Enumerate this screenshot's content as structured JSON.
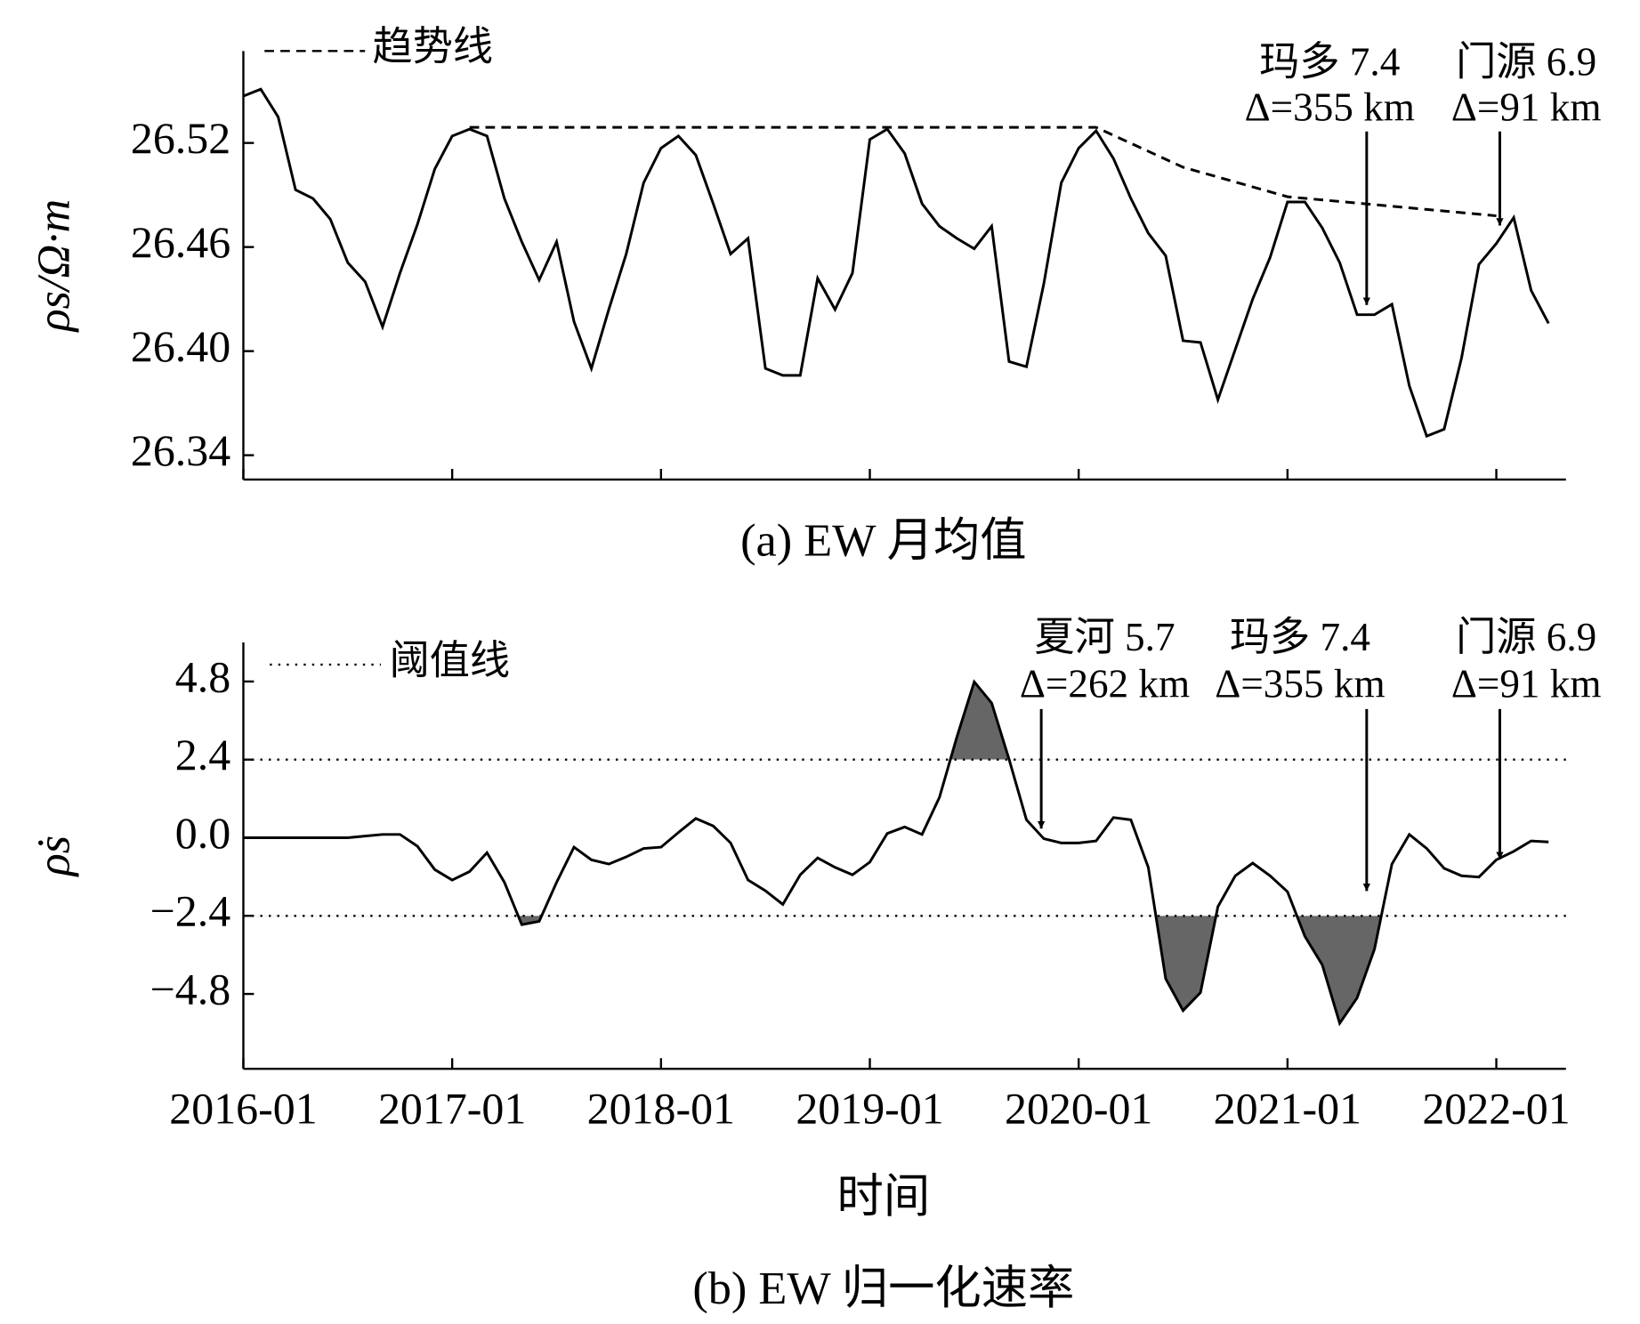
{
  "chart_data": [
    {
      "type": "line",
      "caption": "(a) EW 月均值",
      "ylabel": "ρs/Ω·m",
      "x": [
        "2016-01",
        "2016-02",
        "2016-03",
        "2016-04",
        "2016-05",
        "2016-06",
        "2016-07",
        "2016-08",
        "2016-09",
        "2016-10",
        "2016-11",
        "2016-12",
        "2017-01",
        "2017-02",
        "2017-03",
        "2017-04",
        "2017-05",
        "2017-06",
        "2017-07",
        "2017-08",
        "2017-09",
        "2017-10",
        "2017-11",
        "2017-12",
        "2018-01",
        "2018-02",
        "2018-03",
        "2018-04",
        "2018-05",
        "2018-06",
        "2018-07",
        "2018-08",
        "2018-09",
        "2018-10",
        "2018-11",
        "2018-12",
        "2019-01",
        "2019-02",
        "2019-03",
        "2019-04",
        "2019-05",
        "2019-06",
        "2019-07",
        "2019-08",
        "2019-09",
        "2019-10",
        "2019-11",
        "2019-12",
        "2020-01",
        "2020-02",
        "2020-03",
        "2020-04",
        "2020-05",
        "2020-06",
        "2020-07",
        "2020-08",
        "2020-09",
        "2020-10",
        "2020-11",
        "2020-12",
        "2021-01",
        "2021-02",
        "2021-03",
        "2021-04",
        "2021-05",
        "2021-06",
        "2021-07",
        "2021-08",
        "2021-09",
        "2021-10",
        "2021-11",
        "2021-12",
        "2022-01",
        "2022-02",
        "2022-03",
        "2022-04"
      ],
      "xlim": [
        "2016-01",
        "2022-05"
      ],
      "xticks": [
        "2016-01",
        "2017-01",
        "2018-01",
        "2019-01",
        "2020-01",
        "2021-01",
        "2022-01"
      ],
      "xtick_labels": false,
      "ylim": [
        26.326,
        26.573
      ],
      "yticks": [
        26.34,
        {
          "value": 26.4,
          "label": "26.40"
        },
        26.46,
        26.52
      ],
      "series": [
        {
          "color": "#000000",
          "dash": "solid",
          "values": [
            26.547,
            26.551,
            26.535,
            26.493,
            26.488,
            26.476,
            26.451,
            26.44,
            26.414,
            26.445,
            26.473,
            26.505,
            26.524,
            26.528,
            26.524,
            26.488,
            26.463,
            26.441,
            26.463,
            26.417,
            26.39,
            26.424,
            26.456,
            26.497,
            26.517,
            26.524,
            26.513,
            26.485,
            26.456,
            26.465,
            26.39,
            26.386,
            26.386,
            26.442,
            26.424,
            26.445,
            26.522,
            26.528,
            26.514,
            26.485,
            26.472,
            26.465,
            26.459,
            26.472,
            26.394,
            26.391,
            26.439,
            26.497,
            26.517,
            26.527,
            26.511,
            26.488,
            26.468,
            26.455,
            26.406,
            26.405,
            26.372,
            26.401,
            26.43,
            26.454,
            26.486,
            26.486,
            26.471,
            26.451,
            26.421,
            26.421,
            26.427,
            26.38,
            26.351,
            26.355,
            26.396,
            26.45,
            26.462,
            26.477,
            26.435,
            26.416
          ]
        },
        {
          "name": "趋势线",
          "color": "#000000",
          "dash": "dashed",
          "x": [
            "2017-02",
            "2020-02",
            "2020-07",
            "2021-01",
            "2022-01"
          ],
          "values": [
            26.529,
            26.529,
            26.506,
            26.489,
            26.478
          ]
        }
      ],
      "annotations": [
        {
          "x": "2021-05",
          "lines": [
            "玛多 7.4",
            "Δ=355 km"
          ]
        },
        {
          "x": "2022-01",
          "lines": [
            "门源 6.9",
            "Δ=91 km"
          ]
        }
      ]
    },
    {
      "type": "line",
      "caption": "(b) EW 归一化速率",
      "ylabel": "ρ̇s",
      "xlabel": "时间",
      "x": [
        "2016-01",
        "2016-02",
        "2016-03",
        "2016-04",
        "2016-05",
        "2016-06",
        "2016-07",
        "2016-08",
        "2016-09",
        "2016-10",
        "2016-11",
        "2016-12",
        "2017-01",
        "2017-02",
        "2017-03",
        "2017-04",
        "2017-05",
        "2017-06",
        "2017-07",
        "2017-08",
        "2017-09",
        "2017-10",
        "2017-11",
        "2017-12",
        "2018-01",
        "2018-02",
        "2018-03",
        "2018-04",
        "2018-05",
        "2018-06",
        "2018-07",
        "2018-08",
        "2018-09",
        "2018-10",
        "2018-11",
        "2018-12",
        "2019-01",
        "2019-02",
        "2019-03",
        "2019-04",
        "2019-05",
        "2019-06",
        "2019-07",
        "2019-08",
        "2019-09",
        "2019-10",
        "2019-11",
        "2019-12",
        "2020-01",
        "2020-02",
        "2020-03",
        "2020-04",
        "2020-05",
        "2020-06",
        "2020-07",
        "2020-08",
        "2020-09",
        "2020-10",
        "2020-11",
        "2020-12",
        "2021-01",
        "2021-02",
        "2021-03",
        "2021-04",
        "2021-05",
        "2021-06",
        "2021-07",
        "2021-08",
        "2021-09",
        "2021-10",
        "2021-11",
        "2021-12",
        "2022-01",
        "2022-02",
        "2022-03",
        "2022-04"
      ],
      "xlim": [
        "2016-01",
        "2022-05"
      ],
      "xticks": [
        "2016-01",
        "2017-01",
        "2018-01",
        "2019-01",
        "2020-01",
        "2021-01",
        "2022-01"
      ],
      "xtick_labels": true,
      "ylim": [
        -7.1,
        6.0
      ],
      "yticks": [
        4.8,
        2.4,
        {
          "value": 0,
          "label": "0.0"
        },
        {
          "value": -2.4,
          "label": "−2.4"
        },
        {
          "value": -4.8,
          "label": "−4.8"
        }
      ],
      "series": [
        {
          "color": "#000000",
          "dash": "solid",
          "values": [
            0,
            0,
            0,
            0,
            0,
            0,
            0,
            0.05,
            0.1,
            0.1,
            -0.26,
            -0.98,
            -1.3,
            -1.04,
            -0.46,
            -1.37,
            -2.67,
            -2.57,
            -1.37,
            -0.29,
            -0.68,
            -0.81,
            -0.59,
            -0.33,
            -0.29,
            0.16,
            0.59,
            0.36,
            -0.16,
            -1.3,
            -1.63,
            -2.05,
            -1.14,
            -0.62,
            -0.91,
            -1.14,
            -0.75,
            0.13,
            0.33,
            0.1,
            1.24,
            3.09,
            4.79,
            4.14,
            2.41,
            0.55,
            -0.03,
            -0.16,
            -0.16,
            -0.1,
            0.62,
            0.55,
            -0.91,
            -4.33,
            -5.31,
            -4.76,
            -2.12,
            -1.17,
            -0.78,
            -1.17,
            -1.66,
            -3.03,
            -3.91,
            -5.7,
            -4.92,
            -3.42,
            -0.81,
            0.1,
            -0.33,
            -0.94,
            -1.17,
            -1.21,
            -0.68,
            -0.42,
            -0.1,
            -0.13
          ]
        }
      ],
      "thresholds": {
        "name": "阈值线",
        "values": [
          2.4,
          -2.4
        ],
        "fill": "#666666"
      },
      "annotations": [
        {
          "x": "2019-10",
          "lines": [
            "夏河 5.7",
            "Δ=262 km"
          ]
        },
        {
          "x": "2021-05",
          "lines": [
            "玛多 7.4",
            "Δ=355 km"
          ]
        },
        {
          "x": "2022-01",
          "lines": [
            "门源 6.9",
            "Δ=91 km"
          ]
        }
      ]
    }
  ]
}
